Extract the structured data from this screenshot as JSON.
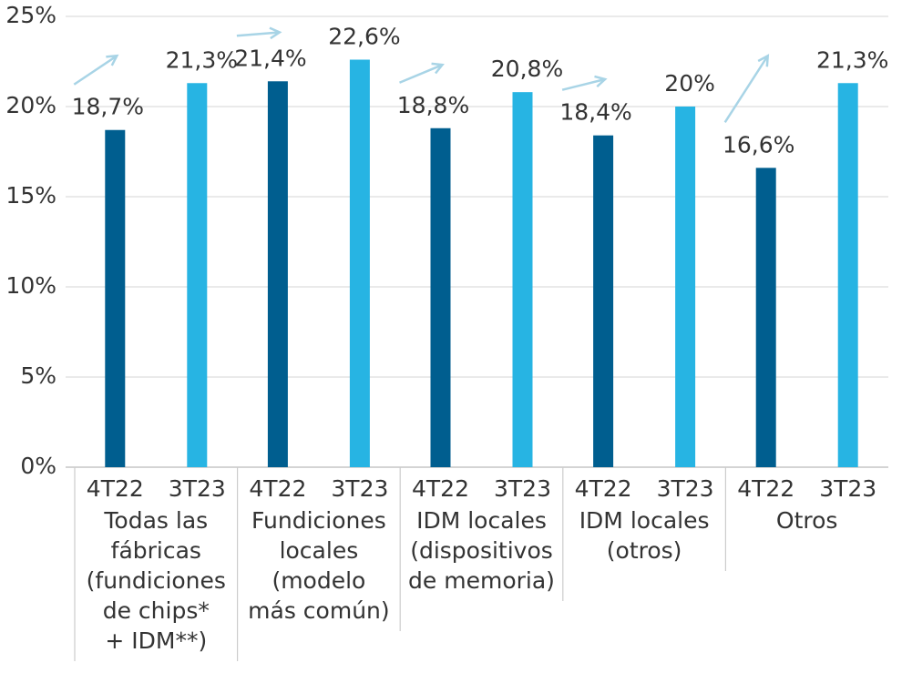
{
  "chart_data": {
    "type": "bar",
    "categories": [
      [
        "Todas las",
        "fábricas",
        "(fundiciones",
        "de chips*",
        "+ IDM**)"
      ],
      [
        "Fundiciones",
        "locales",
        "(modelo",
        "más común)"
      ],
      [
        "IDM locales",
        "(dispositivos",
        "de memoria)"
      ],
      [
        "IDM locales",
        "(otros)"
      ],
      [
        "Otros"
      ]
    ],
    "series": [
      {
        "name": "4T22",
        "color": "#005e8f",
        "values": [
          18.7,
          21.4,
          18.8,
          18.4,
          16.6
        ],
        "value_labels": [
          "18,7%",
          "21,4%",
          "18,8%",
          "18,4%",
          "16,6%"
        ]
      },
      {
        "name": "3T23",
        "color": "#27b4e3",
        "values": [
          21.3,
          22.6,
          20.8,
          20,
          21.3
        ],
        "value_labels": [
          "21,3%",
          "22,6%",
          "20,8%",
          "20%",
          "21,3%"
        ]
      }
    ],
    "ylim": [
      0,
      25
    ],
    "yticks": [
      {
        "value": 0,
        "label": "0%"
      },
      {
        "value": 5,
        "label": "5%"
      },
      {
        "value": 10,
        "label": "10%"
      },
      {
        "value": 15,
        "label": "15%"
      },
      {
        "value": 20,
        "label": "20%"
      },
      {
        "value": 25,
        "label": "25%"
      }
    ],
    "grid": true
  }
}
